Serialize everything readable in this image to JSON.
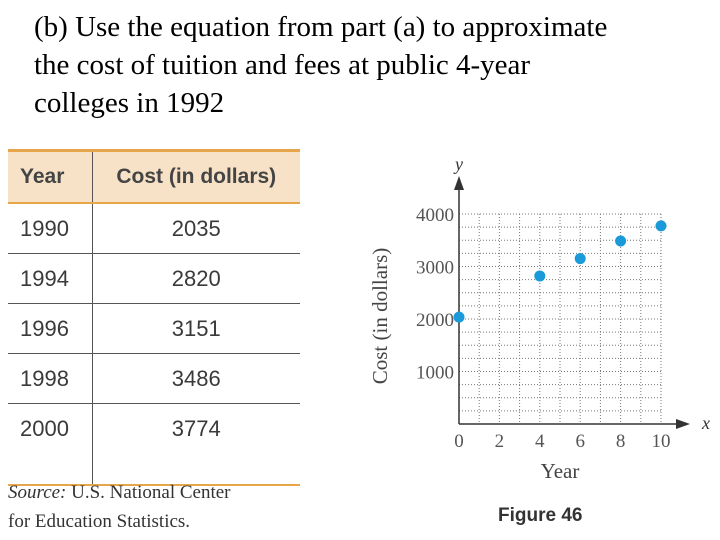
{
  "question": {
    "line1": "(b)  Use the equation from part (a) to approximate",
    "line2": "the cost of tuition and fees at public 4-year",
    "line3": "colleges in 1992"
  },
  "table": {
    "headers": [
      "Year",
      "Cost (in dollars)"
    ],
    "rows": [
      {
        "year": "1990",
        "cost": "2035"
      },
      {
        "year": "1994",
        "cost": "2820"
      },
      {
        "year": "1996",
        "cost": "3151"
      },
      {
        "year": "1998",
        "cost": "3486"
      },
      {
        "year": "2000",
        "cost": "3774"
      }
    ],
    "source_label": "Source:",
    "source_text_1": " U.S. National Center",
    "source_text_2": "for Education Statistics."
  },
  "figure_label": "Figure 46",
  "chart_data": {
    "type": "scatter",
    "x": [
      0,
      4,
      6,
      8,
      10
    ],
    "y": [
      2035,
      2820,
      3151,
      3486,
      3774
    ],
    "xlabel": "Year",
    "ylabel": "Cost (in dollars)",
    "x_axis_var": "x",
    "y_axis_var": "y",
    "xlim": [
      0,
      10
    ],
    "ylim": [
      0,
      4000
    ],
    "x_ticks": [
      0,
      2,
      4,
      6,
      8,
      10
    ],
    "y_ticks": [
      1000,
      2000,
      3000,
      4000
    ],
    "grid": true,
    "point_color": "#1a9ad9"
  }
}
